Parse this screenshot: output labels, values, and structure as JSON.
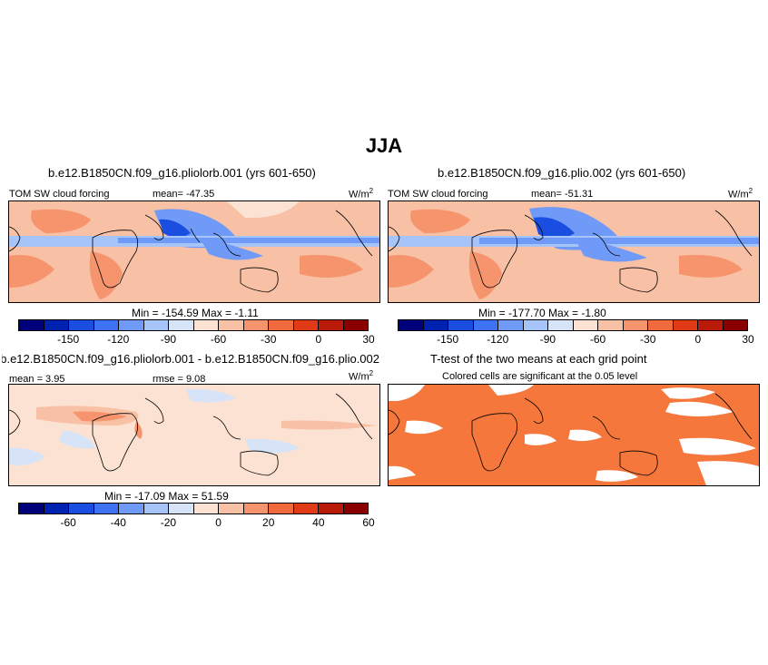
{
  "figure": {
    "title": "JJA"
  },
  "panels": {
    "p1": {
      "title": "b.e12.B1850CN.f09_g16.pliolorb.001 (yrs 601-650)",
      "variable": "TOM SW cloud forcing",
      "stat": "mean=  -47.35",
      "units": "W/m",
      "units_sup": "2",
      "minmax": "Min = -154.59  Max =   -1.11"
    },
    "p2": {
      "title": "b.e12.B1850CN.f09_g16.plio.002 (yrs 601-650)",
      "variable": "TOM SW cloud forcing",
      "stat": "mean=  -51.31",
      "units": "W/m",
      "units_sup": "2",
      "minmax": "Min = -177.70  Max =   -1.80"
    },
    "p3": {
      "title": "b.e12.B1850CN.f09_g16.pliolorb.001 - b.e12.B1850CN.f09_g16.plio.002",
      "mean": "mean =   3.95",
      "rmse": "rmse =   9.08",
      "units": "W/m",
      "units_sup": "2",
      "minmax": "Min = -17.09  Max =  51.59"
    },
    "p4": {
      "title": "T-test of the two means at each grid point",
      "subtitle": "Colored cells are significant at the 0.05 level"
    }
  },
  "colorbar_forcing": {
    "colors": [
      "#00007a",
      "#0022b0",
      "#1a4ee0",
      "#3d73f2",
      "#6f9af7",
      "#a7c4f9",
      "#d7e4f7",
      "#fbe2d3",
      "#f8c0a4",
      "#f6946d",
      "#f06a3e",
      "#e03a17",
      "#b91b08",
      "#8a0000"
    ],
    "ticks": [
      "-150",
      "-120",
      "-90",
      "-60",
      "-30",
      "0",
      "30"
    ]
  },
  "colorbar_diff": {
    "colors": [
      "#00007a",
      "#0022b0",
      "#1a4ee0",
      "#3d73f2",
      "#6f9af7",
      "#a7c4f9",
      "#d7e4f7",
      "#fbe2d3",
      "#f8c0a4",
      "#f6946d",
      "#f06a3e",
      "#e03a17",
      "#b91b08",
      "#8a0000"
    ],
    "ticks": [
      "-60",
      "-40",
      "-20",
      "0",
      "20",
      "40",
      "60"
    ]
  },
  "significance_color": "#f5773b",
  "map_colors": {
    "land_base": "#f6946d",
    "ocean_base": "#f8c0a4",
    "deep_blue": "#3d73f2",
    "mid_blue": "#6f9af7",
    "light_blue": "#a7c4f9",
    "pale": "#fbe2d3",
    "coast": "#000000"
  }
}
